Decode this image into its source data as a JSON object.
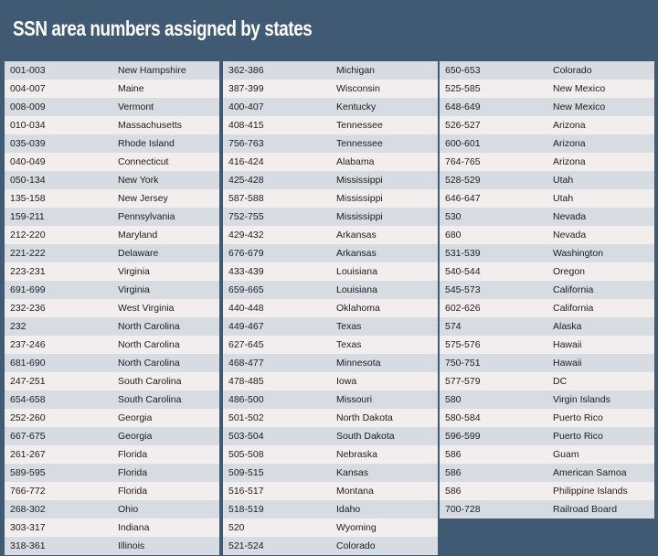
{
  "header": {
    "title": "SSN area numbers assigned by states"
  },
  "table": {
    "columns": [
      {
        "rows": [
          [
            "001-003",
            "New Hampshire"
          ],
          [
            "004-007",
            "Maine"
          ],
          [
            "008-009",
            "Vermont"
          ],
          [
            "010-034",
            "Massachusetts"
          ],
          [
            "035-039",
            "Rhode Island"
          ],
          [
            "040-049",
            "Connecticut"
          ],
          [
            "050-134",
            "New York"
          ],
          [
            "135-158",
            "New Jersey"
          ],
          [
            "159-211",
            "Pennsylvania"
          ],
          [
            "212-220",
            "Maryland"
          ],
          [
            "221-222",
            "Delaware"
          ],
          [
            "223-231",
            "Virginia"
          ],
          [
            "691-699",
            "Virginia"
          ],
          [
            "232-236",
            "West Virginia"
          ],
          [
            "232",
            "North Carolina"
          ],
          [
            "237-246",
            "North Carolina"
          ],
          [
            "681-690",
            "North Carolina"
          ],
          [
            "247-251",
            "South Carolina"
          ],
          [
            "654-658",
            "South Carolina"
          ],
          [
            "252-260",
            "Georgia"
          ],
          [
            "667-675",
            "Georgia"
          ],
          [
            "261-267",
            "Florida"
          ],
          [
            "589-595",
            "Florida"
          ],
          [
            "766-772",
            "Florida"
          ],
          [
            "268-302",
            "Ohio"
          ],
          [
            "303-317",
            "Indiana"
          ],
          [
            "318-361",
            "Illinois"
          ]
        ]
      },
      {
        "rows": [
          [
            "362-386",
            "Michigan"
          ],
          [
            "387-399",
            "Wisconsin"
          ],
          [
            "400-407",
            "Kentucky"
          ],
          [
            "408-415",
            "Tennessee"
          ],
          [
            "756-763",
            "Tennessee"
          ],
          [
            "416-424",
            "Alabama"
          ],
          [
            "425-428",
            "Mississippi"
          ],
          [
            "587-588",
            "Mississippi"
          ],
          [
            "752-755",
            "Mississippi"
          ],
          [
            "429-432",
            "Arkansas"
          ],
          [
            "676-679",
            "Arkansas"
          ],
          [
            "433-439",
            "Louisiana"
          ],
          [
            "659-665",
            "Louisiana"
          ],
          [
            "440-448",
            "Oklahoma"
          ],
          [
            "449-467",
            "Texas"
          ],
          [
            "627-645",
            "Texas"
          ],
          [
            "468-477",
            "Minnesota"
          ],
          [
            "478-485",
            "Iowa"
          ],
          [
            "486-500",
            "Missouri"
          ],
          [
            "501-502",
            "North Dakota"
          ],
          [
            "503-504",
            "South Dakota"
          ],
          [
            "505-508",
            "Nebraska"
          ],
          [
            "509-515",
            "Kansas"
          ],
          [
            "516-517",
            "Montana"
          ],
          [
            "518-519",
            "Idaho"
          ],
          [
            "520",
            "Wyoming"
          ],
          [
            "521-524",
            "Colorado"
          ]
        ]
      },
      {
        "rows": [
          [
            "650-653",
            "Colorado"
          ],
          [
            "525-585",
            "New Mexico"
          ],
          [
            "648-649",
            "New Mexico"
          ],
          [
            "526-527",
            "Arizona"
          ],
          [
            "600-601",
            "Arizona"
          ],
          [
            "764-765",
            "Arizona"
          ],
          [
            "528-529",
            "Utah"
          ],
          [
            "646-647",
            "Utah"
          ],
          [
            "530",
            "Nevada"
          ],
          [
            "680",
            "Nevada"
          ],
          [
            "531-539",
            "Washington"
          ],
          [
            "540-544",
            "Oregon"
          ],
          [
            "545-573",
            "California"
          ],
          [
            "602-626",
            "California"
          ],
          [
            "574",
            "Alaska"
          ],
          [
            "575-576",
            "Hawaii"
          ],
          [
            "750-751",
            "Hawaii"
          ],
          [
            "577-579",
            "DC"
          ],
          [
            "580",
            "Virgin Islands"
          ],
          [
            "580-584",
            "Puerto Rico"
          ],
          [
            "596-599",
            "Puerto Rico"
          ],
          [
            "586",
            "Guam"
          ],
          [
            "586",
            "American Samoa"
          ],
          [
            "586",
            "Philippine Islands"
          ],
          [
            "700-728",
            "Railroad Board"
          ]
        ]
      }
    ]
  }
}
